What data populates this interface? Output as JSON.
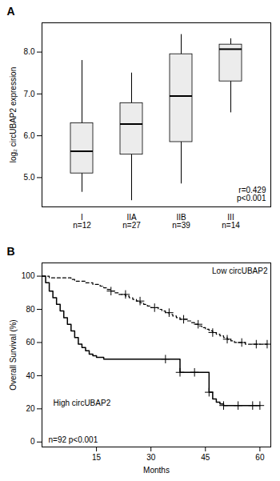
{
  "chart_data": [
    {
      "type": "box",
      "title": "A",
      "ylabel": "log₂ circUBAP2 expression",
      "categories": [
        "I",
        "IIA",
        "IIB",
        "III"
      ],
      "n_labels": [
        "n=12",
        "n=27",
        "n=39",
        "n=14"
      ],
      "boxes": [
        {
          "q1": 5.1,
          "median": 5.63,
          "q3": 6.3,
          "whislo": 4.65,
          "whishi": 7.8
        },
        {
          "q1": 5.55,
          "median": 6.28,
          "q3": 6.78,
          "whislo": 4.45,
          "whishi": 7.5
        },
        {
          "q1": 5.85,
          "median": 6.95,
          "q3": 7.95,
          "whislo": 4.85,
          "whishi": 8.42
        },
        {
          "q1": 7.3,
          "median": 8.07,
          "q3": 8.18,
          "whislo": 6.55,
          "whishi": 8.32
        }
      ],
      "ylim": [
        4.3,
        8.7
      ],
      "yticks": [
        5,
        6,
        7,
        8
      ],
      "annotation": "r=0.429\np<0.001",
      "color": "#ececec"
    },
    {
      "type": "step",
      "title": "B",
      "xlabel": "Months",
      "ylabel": "Overall Survival (%)",
      "xlim": [
        0,
        63
      ],
      "ylim": [
        -3,
        108
      ],
      "xticks": [
        15,
        30,
        45,
        60
      ],
      "yticks": [
        0,
        20,
        40,
        60,
        80,
        100
      ],
      "annotation": "n=92 p<0.001",
      "series": [
        {
          "name": "Low circUBAP2",
          "color": "#000000",
          "line_style": "dashed",
          "marker": "plus",
          "x": [
            0,
            1,
            2,
            3,
            4,
            5,
            6,
            7,
            8,
            9,
            10,
            11,
            12,
            13,
            14,
            15,
            16,
            17,
            18,
            19,
            20,
            21,
            22,
            23,
            24,
            25,
            26,
            27,
            28,
            29,
            30,
            31,
            32,
            33,
            34,
            35,
            36,
            37,
            38,
            39,
            40,
            41,
            42,
            43,
            44,
            45,
            46,
            47,
            48,
            49,
            50,
            51,
            52,
            53,
            54,
            55,
            56,
            57,
            58,
            59,
            60,
            62
          ],
          "values": [
            100,
            100,
            99,
            99,
            99,
            99,
            99,
            99,
            98,
            97,
            97,
            97,
            96,
            96,
            95,
            95,
            94,
            93,
            92,
            91,
            90,
            89,
            89,
            88,
            87,
            86,
            85,
            84,
            83,
            82,
            81,
            81,
            80,
            79,
            78,
            77,
            76,
            75,
            74,
            74,
            73,
            72,
            71,
            70,
            69,
            68,
            67,
            66,
            65,
            64,
            63,
            62,
            61,
            60,
            60,
            60,
            59,
            59,
            59,
            59,
            59,
            59
          ],
          "censor_x": [
            19,
            23,
            27,
            31,
            35,
            39,
            43,
            47,
            51,
            55,
            59,
            62
          ],
          "censor_values": [
            91,
            89,
            85,
            81,
            78,
            74,
            71,
            66,
            62,
            60,
            59,
            59
          ]
        },
        {
          "name": "High circUBAP2",
          "color": "#000000",
          "line_style": "solid",
          "marker": "plus",
          "x": [
            0,
            1,
            2,
            3,
            4,
            5,
            6,
            7,
            8,
            9,
            10,
            11,
            12,
            13,
            14,
            15,
            16,
            17,
            18,
            19,
            20,
            21,
            22,
            23,
            24,
            25,
            26,
            27,
            28,
            29,
            30,
            31,
            32,
            33,
            34,
            35,
            36,
            37,
            38,
            39,
            40,
            41,
            42,
            43,
            44,
            45,
            46,
            47,
            48,
            49,
            50,
            51,
            52,
            53,
            54,
            55,
            56,
            57,
            58,
            59,
            60
          ],
          "values": [
            100,
            96,
            91,
            87,
            83,
            79,
            75,
            71,
            67,
            63,
            59,
            57,
            55,
            53,
            52,
            51,
            51,
            50,
            50,
            50,
            50,
            50,
            50,
            50,
            50,
            50,
            50,
            50,
            50,
            50,
            50,
            50,
            50,
            50,
            50,
            50,
            50,
            50,
            42,
            42,
            42,
            42,
            42,
            42,
            42,
            42,
            30,
            26,
            24,
            23,
            22,
            22,
            22,
            22,
            22,
            22,
            22,
            22,
            22,
            22,
            22
          ],
          "censor_x": [
            34,
            38,
            42,
            46,
            50,
            54,
            58,
            60
          ],
          "censor_values": [
            50,
            42,
            42,
            30,
            22,
            22,
            22,
            22
          ]
        }
      ]
    }
  ]
}
